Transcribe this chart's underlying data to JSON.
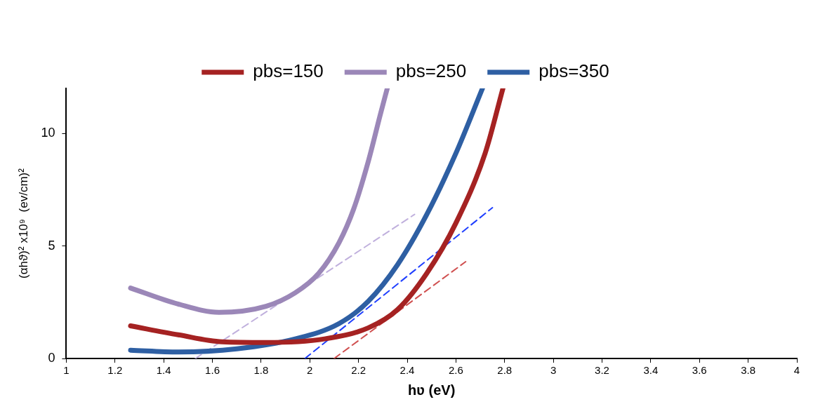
{
  "chart_data": {
    "type": "line",
    "xlabel": "hʋ (eV)",
    "ylabel": "(αhϑ)² x10⁹  (ev/cm)²",
    "xlim": [
      1,
      4
    ],
    "xticks": [
      1,
      1.2,
      1.4,
      1.6,
      1.8,
      2,
      2.2,
      2.4,
      2.6,
      2.8,
      3,
      3.2,
      3.4,
      3.6,
      3.8,
      4
    ],
    "ylim": [
      0,
      12
    ],
    "yticks": [
      0,
      5,
      10
    ],
    "grid": false,
    "legend": "top",
    "marker": "none",
    "line_style": "solid",
    "series": [
      {
        "name": "pbs=150",
        "color": "#a52222",
        "x": [
          1.264,
          1.46,
          1.64,
          1.82,
          2.06,
          2.24,
          2.36,
          2.48,
          2.6,
          2.72,
          2.793
        ],
        "values": [
          1.45,
          1.05,
          0.74,
          0.71,
          0.87,
          1.36,
          2.17,
          3.78,
          6.02,
          9.12,
          12
        ]
      },
      {
        "name": "pbs=250",
        "color": "#9b87b8",
        "x": [
          1.264,
          1.459,
          1.627,
          1.82,
          1.94,
          2.036,
          2.12,
          2.18,
          2.24,
          2.29,
          2.318
        ],
        "values": [
          3.13,
          2.42,
          2.05,
          2.32,
          2.92,
          3.78,
          5.15,
          6.64,
          8.75,
          10.86,
          12
        ]
      },
      {
        "name": "pbs=350",
        "color": "#2e5fa3",
        "x": [
          1.264,
          1.46,
          1.7,
          1.94,
          2.12,
          2.24,
          2.36,
          2.48,
          2.6,
          2.709
        ],
        "values": [
          0.37,
          0.29,
          0.43,
          0.87,
          1.55,
          2.54,
          4.16,
          6.39,
          9.12,
          12
        ]
      },
      {
        "type": "line",
        "color": "#d05050",
        "line_style": "dashed",
        "x": [
          2.1,
          2.64
        ],
        "values": [
          0,
          4.3
        ]
      },
      {
        "type": "line",
        "color": "#c0b0dd",
        "line_style": "dashed",
        "x": [
          1.53,
          2.43
        ],
        "values": [
          0,
          6.4
        ]
      },
      {
        "type": "line",
        "color": "#1f3fff",
        "line_style": "dashed",
        "x": [
          1.98,
          2.75
        ],
        "values": [
          0,
          6.7
        ]
      }
    ]
  }
}
